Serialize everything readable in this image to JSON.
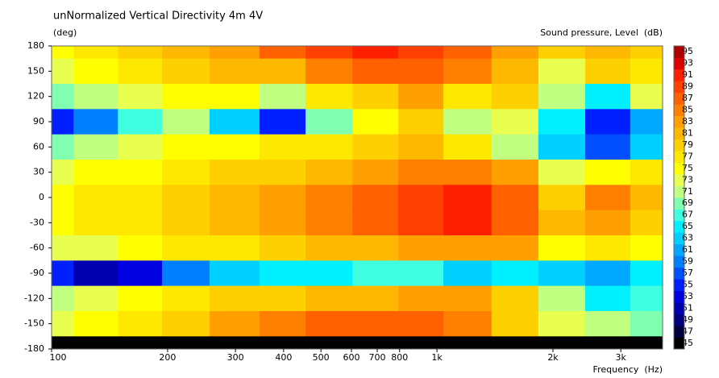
{
  "chart_data": {
    "type": "heatmap",
    "title": "unNormalized Vertical Directivity 4m 4V",
    "y_label": "(deg)",
    "x_label": "Frequency  (Hz)",
    "log_x": true,
    "xlim": [
      100,
      3850
    ],
    "ylim": [
      -180,
      180
    ],
    "xticks": [
      100,
      200,
      300,
      400,
      500,
      600,
      700,
      800,
      {
        "value": 1000,
        "label": "1k"
      },
      {
        "value": 2000,
        "label": "2k"
      },
      {
        "value": 3000,
        "label": "3k"
      }
    ],
    "yticks": [
      180,
      150,
      120,
      90,
      60,
      30,
      0,
      -30,
      -60,
      -90,
      -120,
      -150,
      -180
    ],
    "x": [
      100,
      130,
      170,
      220,
      300,
      400,
      520,
      700,
      900,
      1200,
      1600,
      2100,
      2800,
      3600
    ],
    "y": [
      180,
      150,
      120,
      90,
      60,
      30,
      0,
      -30,
      -60,
      -90,
      -120,
      -150,
      -180
    ],
    "z": [
      [
        75,
        77,
        79,
        81,
        83,
        87,
        89,
        91,
        89,
        87,
        83,
        79,
        81,
        79
      ],
      [
        73,
        75,
        77,
        79,
        81,
        81,
        85,
        87,
        87,
        85,
        81,
        73,
        79,
        77
      ],
      [
        69,
        71,
        73,
        75,
        75,
        71,
        77,
        79,
        83,
        77,
        79,
        71,
        65,
        73
      ],
      [
        55,
        59,
        67,
        71,
        63,
        55,
        69,
        75,
        79,
        71,
        73,
        65,
        55,
        61
      ],
      [
        69,
        71,
        73,
        75,
        75,
        77,
        77,
        79,
        81,
        77,
        71,
        63,
        57,
        63
      ],
      [
        73,
        75,
        75,
        77,
        79,
        79,
        81,
        83,
        85,
        85,
        83,
        73,
        75,
        77
      ],
      [
        75,
        77,
        77,
        79,
        81,
        83,
        85,
        87,
        89,
        91,
        87,
        79,
        85,
        81
      ],
      [
        75,
        77,
        77,
        79,
        81,
        83,
        85,
        87,
        89,
        91,
        87,
        81,
        83,
        79
      ],
      [
        73,
        73,
        75,
        77,
        77,
        79,
        81,
        81,
        83,
        83,
        83,
        75,
        77,
        75
      ],
      [
        55,
        51,
        53,
        59,
        63,
        65,
        65,
        67,
        67,
        63,
        65,
        63,
        61,
        65
      ],
      [
        71,
        73,
        75,
        77,
        79,
        79,
        81,
        81,
        83,
        83,
        79,
        71,
        65,
        67
      ],
      [
        73,
        75,
        77,
        79,
        83,
        85,
        87,
        87,
        87,
        85,
        79,
        73,
        71,
        69
      ],
      [
        45,
        45,
        45,
        45,
        45,
        45,
        45,
        45,
        45,
        45,
        45,
        45,
        45,
        45
      ]
    ],
    "colorbar": {
      "title": "Sound pressure, Level  (dB)",
      "ticks": [
        45,
        47,
        49,
        51,
        53,
        55,
        57,
        59,
        61,
        63,
        65,
        67,
        69,
        71,
        73,
        75,
        77,
        79,
        81,
        83,
        85,
        87,
        89,
        91,
        93,
        95
      ],
      "colors": [
        "#000000",
        "#000040",
        "#000080",
        "#0000b0",
        "#0000e0",
        "#0020ff",
        "#0050ff",
        "#0080ff",
        "#00a8ff",
        "#00d0ff",
        "#00f0ff",
        "#40ffe0",
        "#80ffb0",
        "#c0ff80",
        "#e8ff50",
        "#ffff00",
        "#ffe800",
        "#ffd000",
        "#ffb800",
        "#ffa000",
        "#ff8000",
        "#ff6000",
        "#ff4000",
        "#ff2000",
        "#e00000",
        "#b00000"
      ]
    }
  }
}
